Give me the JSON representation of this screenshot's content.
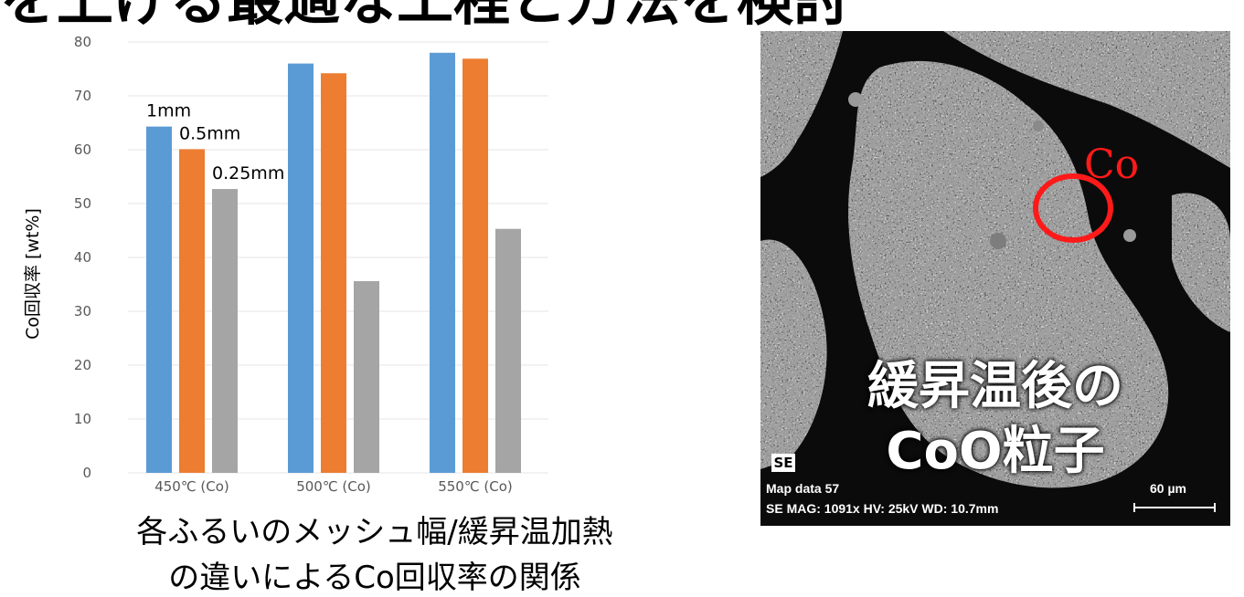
{
  "header": {
    "title_fragment": "を上げる最適な工程と方法を検討"
  },
  "chart_data": {
    "type": "bar",
    "categories": [
      "450℃ (Co)",
      "500℃ (Co)",
      "550℃ (Co)"
    ],
    "series": [
      {
        "name": "1mm",
        "values": [
          64.3,
          76.0,
          78.0
        ],
        "color": "#5b9bd5"
      },
      {
        "name": "0.5mm",
        "values": [
          60.1,
          74.2,
          76.9
        ],
        "color": "#ed7d31"
      },
      {
        "name": "0.25mm",
        "values": [
          52.7,
          35.6,
          45.3
        ],
        "color": "#a5a5a5"
      }
    ],
    "ylabel": "Co回収率 [wt%]",
    "ylim": [
      0,
      80
    ],
    "yticks": [
      0,
      10,
      20,
      30,
      40,
      50,
      60,
      70,
      80
    ],
    "grid": true
  },
  "caption": {
    "line1": "各ふるいのメッシュ幅/緩昇温加熱",
    "line2": "の違いによるCo回収率の関係"
  },
  "sem_image": {
    "co_label": "Co",
    "overlay_line1": "緩昇温後の",
    "overlay_line2": "CoO粒子",
    "detector_logo": "SE",
    "info_line1": "Map data 57",
    "info_line2": "SE  MAG: 1091x  HV: 25kV  WD: 10.7mm",
    "scale_label": "60 µm",
    "circle_color": "#ff1a1a"
  }
}
